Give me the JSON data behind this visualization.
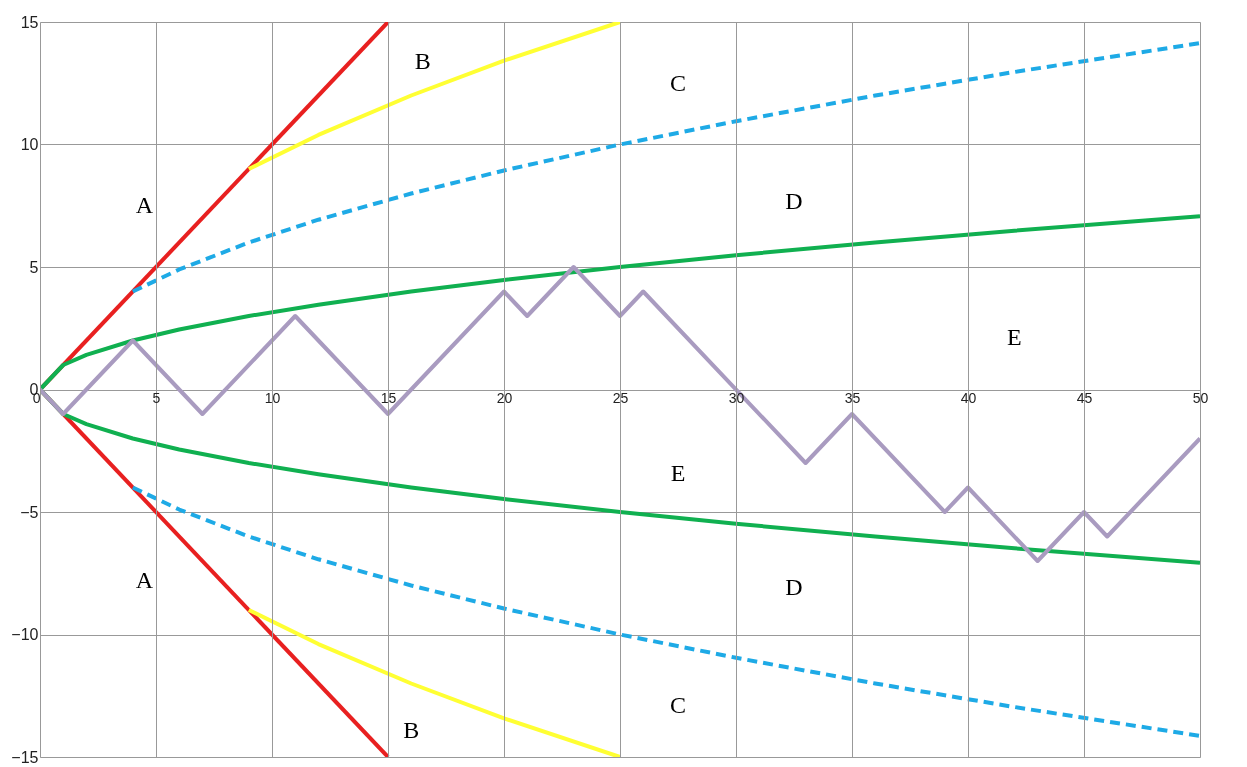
{
  "chart_data": {
    "type": "line",
    "xlim": [
      0,
      50
    ],
    "ylim": [
      -15,
      15
    ],
    "xticks": [
      0,
      5,
      10,
      15,
      20,
      25,
      30,
      35,
      40,
      45,
      50
    ],
    "yticks": [
      -15,
      -10,
      -5,
      0,
      5,
      10,
      15
    ],
    "grid": true,
    "marker": "none",
    "series": [
      {
        "color": "#e82020",
        "line_style": "solid",
        "x": [
          0,
          15
        ],
        "values": [
          0,
          15
        ]
      },
      {
        "color": "#e82020",
        "line_style": "solid",
        "x": [
          0,
          15
        ],
        "values": [
          0,
          -15
        ]
      },
      {
        "color": "#ffff33",
        "line_style": "solid",
        "x": [
          9,
          12,
          16,
          20,
          25
        ],
        "values": [
          9,
          10.39,
          12,
          13.42,
          15
        ]
      },
      {
        "color": "#ffff33",
        "line_style": "solid",
        "x": [
          9,
          12,
          16,
          20,
          25
        ],
        "values": [
          -9,
          -10.39,
          -12,
          -13.42,
          -15
        ]
      },
      {
        "color": "#1eaae6",
        "line_style": "dashed",
        "x": [
          4,
          6,
          9,
          12,
          16,
          20,
          25,
          30,
          36,
          42,
          50
        ],
        "values": [
          4,
          4.9,
          6,
          6.93,
          8,
          8.94,
          10,
          10.95,
          12,
          12.96,
          14.14
        ]
      },
      {
        "color": "#1eaae6",
        "line_style": "dashed",
        "x": [
          4,
          6,
          9,
          12,
          16,
          20,
          25,
          30,
          36,
          42,
          50
        ],
        "values": [
          -4,
          -4.9,
          -6,
          -6.93,
          -8,
          -8.94,
          -10,
          -10.95,
          -12,
          -12.96,
          -14.14
        ]
      },
      {
        "color": "#10b050",
        "line_style": "solid",
        "x": [
          0,
          1,
          2,
          4,
          6,
          9,
          12,
          16,
          20,
          25,
          30,
          36,
          42,
          50
        ],
        "values": [
          0,
          1,
          1.41,
          2,
          2.45,
          3,
          3.46,
          4,
          4.47,
          5,
          5.48,
          6,
          6.48,
          7.07
        ]
      },
      {
        "color": "#10b050",
        "line_style": "solid",
        "x": [
          0,
          1,
          2,
          4,
          6,
          9,
          12,
          16,
          20,
          25,
          30,
          36,
          42,
          50
        ],
        "values": [
          0,
          -1,
          -1.41,
          -2,
          -2.45,
          -3,
          -3.46,
          -4,
          -4.47,
          -5,
          -5.48,
          -6,
          -6.48,
          -7.07
        ]
      },
      {
        "color": "#a99bc0",
        "line_style": "solid",
        "x": [
          0,
          1,
          4,
          7,
          11,
          15,
          20,
          21,
          23,
          25,
          26,
          33,
          35,
          39,
          40,
          43,
          45,
          46,
          50
        ],
        "values": [
          0,
          -1,
          2,
          -1,
          3,
          -1,
          4,
          3,
          5,
          3,
          4,
          -3,
          -1,
          -5,
          -4,
          -7,
          -5,
          -6,
          -2
        ]
      }
    ],
    "annotations": [
      "A",
      "A",
      "B",
      "B",
      "C",
      "C",
      "D",
      "D",
      "E",
      "E"
    ]
  }
}
